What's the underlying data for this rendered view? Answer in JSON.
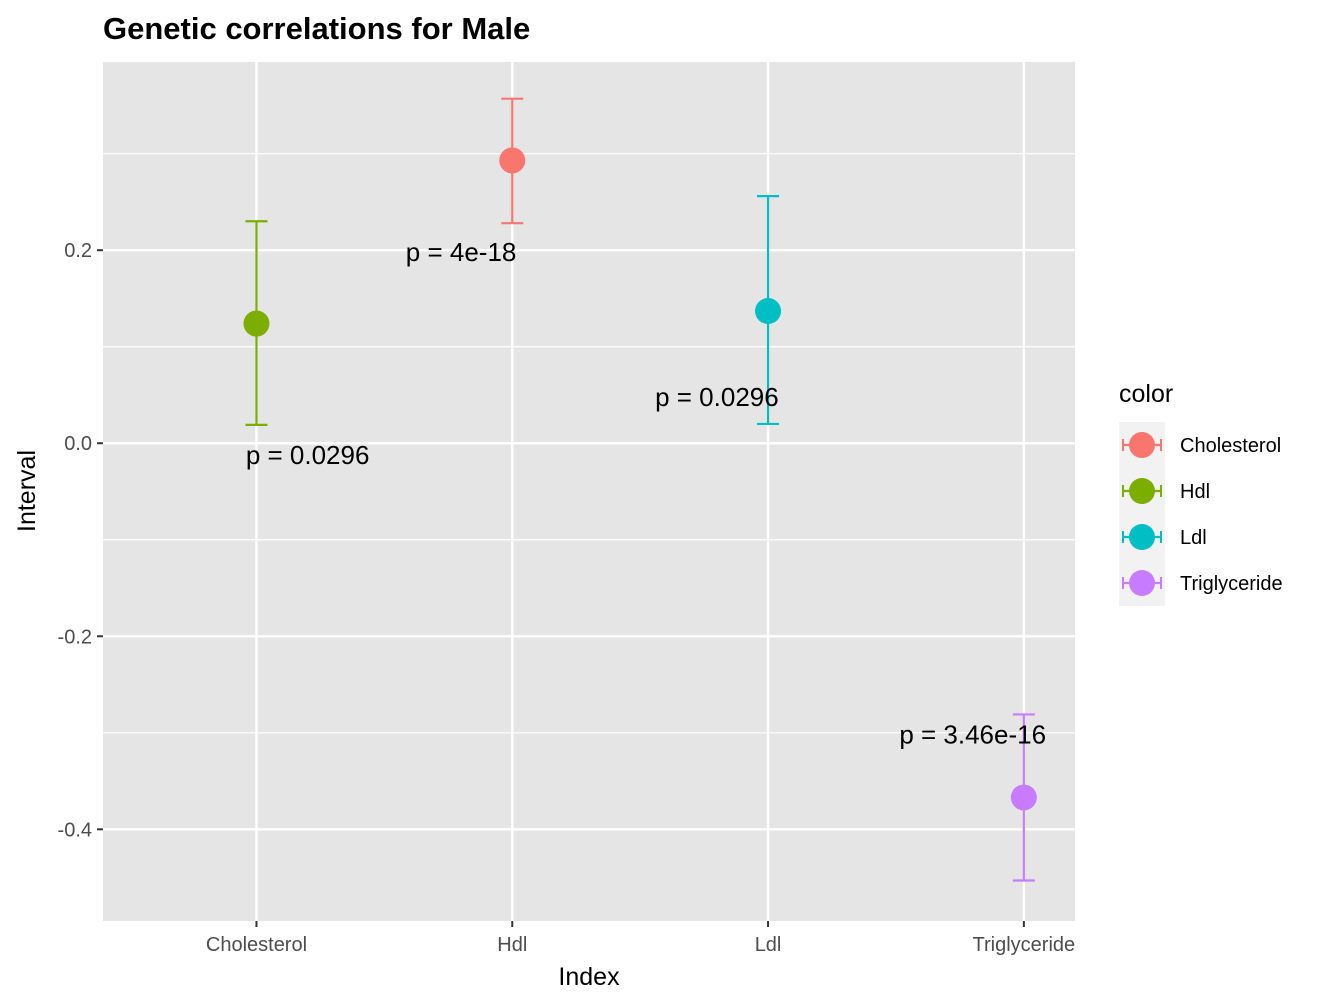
{
  "chart_data": {
    "type": "scatter",
    "title": "Genetic correlations for Male",
    "xlabel": "Index",
    "ylabel": "Interval",
    "categories": [
      "Cholesterol",
      "Hdl",
      "Ldl",
      "Triglyceride"
    ],
    "ylim": [
      -0.495,
      0.395
    ],
    "yticks": [
      -0.4,
      -0.2,
      0.0,
      0.2
    ],
    "ytick_labels": [
      "-0.4",
      "-0.2",
      "0.0",
      "0.2"
    ],
    "grid": true,
    "points": [
      {
        "x": "Cholesterol",
        "color_group": "Hdl",
        "y": 0.124,
        "lower": 0.019,
        "upper": 0.23,
        "annotation": "p = 0.0296",
        "annot_y": -0.012,
        "annot_dx": 0.2
      },
      {
        "x": "Hdl",
        "color_group": "Cholesterol",
        "y": 0.293,
        "lower": 0.228,
        "upper": 0.357,
        "annotation": "p = 4e-18",
        "annot_y": 0.198,
        "annot_dx": -0.2
      },
      {
        "x": "Ldl",
        "color_group": "Ldl",
        "y": 0.137,
        "lower": 0.02,
        "upper": 0.256,
        "annotation": "p = 0.0296",
        "annot_y": 0.048,
        "annot_dx": -0.2
      },
      {
        "x": "Triglyceride",
        "color_group": "Triglyceride",
        "y": -0.367,
        "lower": -0.453,
        "upper": -0.281,
        "annotation": "p = 3.46e-16",
        "annot_y": -0.302,
        "annot_dx": -0.2
      }
    ],
    "legend": {
      "title": "color",
      "position": "right",
      "entries": [
        "Cholesterol",
        "Hdl",
        "Ldl",
        "Triglyceride"
      ]
    },
    "colors": {
      "Cholesterol": "#F8766D",
      "Hdl": "#7CAE00",
      "Ldl": "#00BFC4",
      "Triglyceride": "#C77CFF"
    },
    "panel_background": "#E5E5E5",
    "grid_color": "#FFFFFF"
  }
}
